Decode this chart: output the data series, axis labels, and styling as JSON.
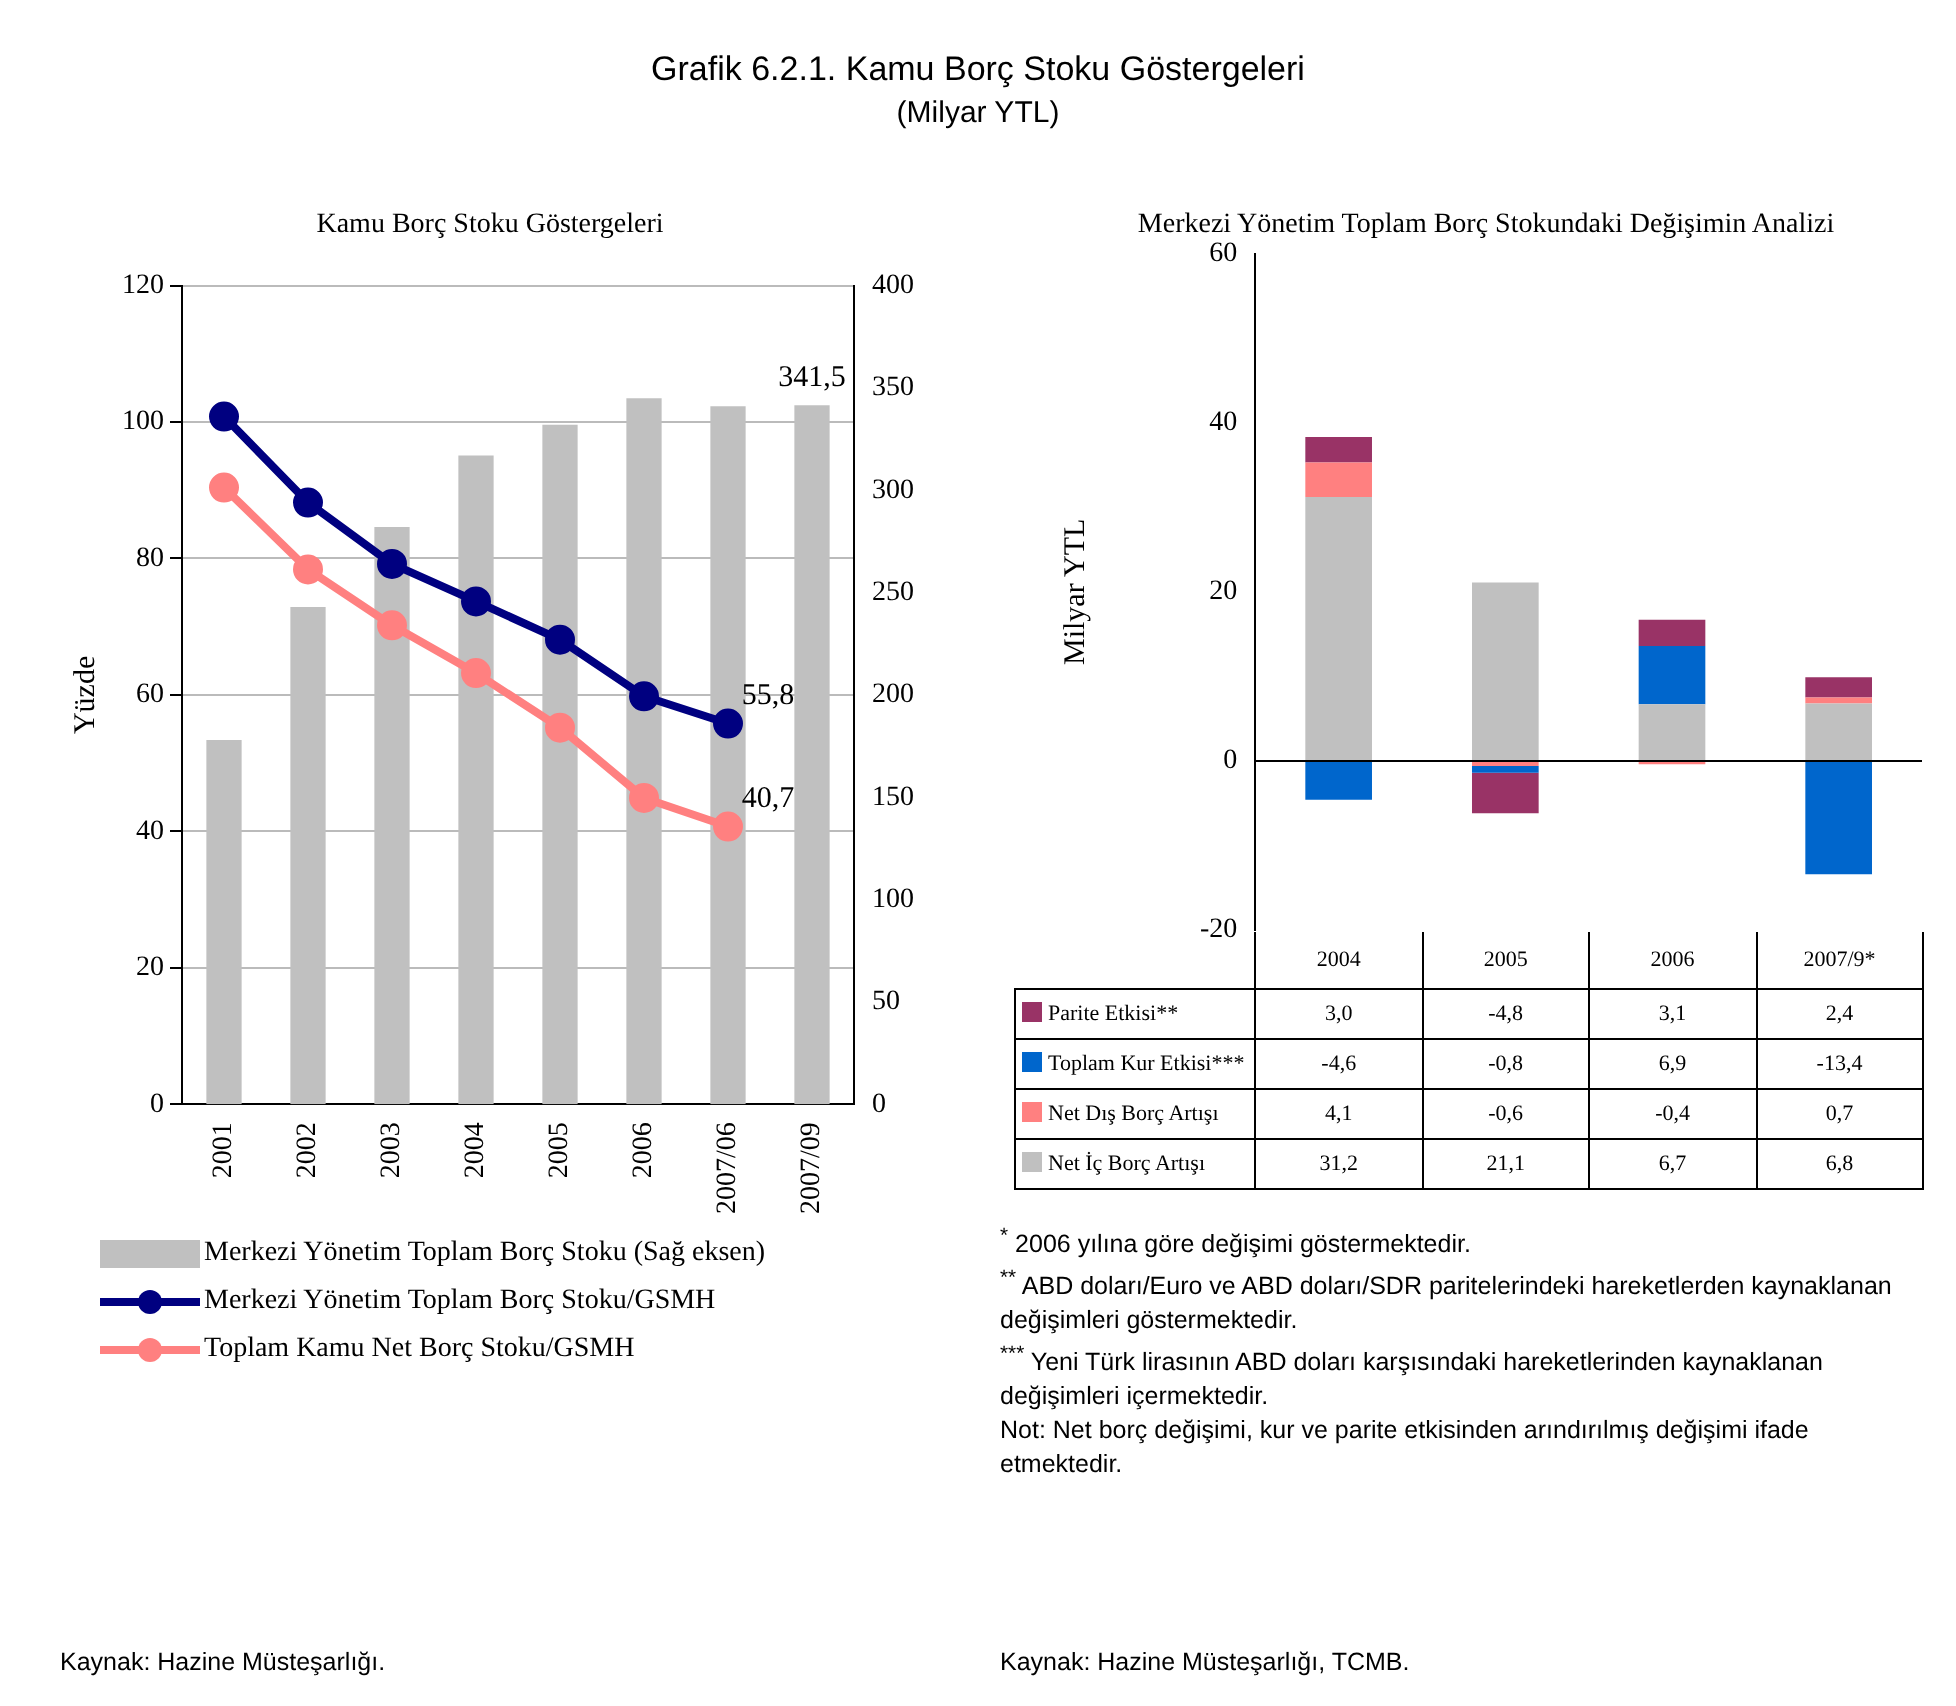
{
  "chart_data": [
    {
      "type": "other",
      "title": "Grafik 6.2.1. Kamu Borç Stoku Göstergeleri",
      "subtitle": "(Milyar YTL)"
    },
    {
      "type": "bar",
      "title": "Kamu Borç Stoku Göstergeleri",
      "ylabel": "Yüzde",
      "categories": [
        "2001",
        "2002",
        "2003",
        "2004",
        "2005",
        "2006",
        "2007/06",
        "2007/09"
      ],
      "series": [
        {
          "type": "bar",
          "name": "Merkezi Yönetim Toplam Borç Stoku (Sağ eksen)",
          "color": "#c0c0c0",
          "axis": "y2",
          "values": [
            178,
            243,
            282,
            317,
            332,
            345,
            341,
            341.5
          ],
          "value_labels": [
            null,
            null,
            null,
            null,
            null,
            null,
            null,
            "341,5"
          ]
        },
        {
          "type": "line",
          "name": "Merkezi Yönetim Toplam Borç Stoku/GSMH",
          "color": "#000080",
          "axis": "y",
          "values": [
            100.8,
            88.2,
            79.2,
            73.7,
            68.1,
            59.8,
            55.8,
            null
          ],
          "value_labels": [
            null,
            null,
            null,
            null,
            null,
            null,
            "55,8",
            null
          ]
        },
        {
          "type": "line",
          "name": "Toplam Kamu Net Borç Stoku/GSMH",
          "color": "#ff8080",
          "axis": "y",
          "values": [
            90.4,
            78.4,
            70.2,
            63.2,
            55.2,
            44.9,
            40.7,
            null
          ],
          "value_labels": [
            null,
            null,
            null,
            null,
            null,
            null,
            "40,7",
            null
          ]
        }
      ],
      "ylim": [
        0,
        120
      ],
      "yticks": [
        0,
        20,
        40,
        60,
        80,
        100,
        120
      ],
      "y2lim": [
        0,
        400
      ],
      "y2ticks": [
        0,
        50,
        100,
        150,
        200,
        250,
        300,
        350,
        400
      ],
      "grid": "y",
      "legend": "bottom",
      "marker": "circle",
      "line_style": "solid",
      "annotations": [
        "Kaynak: Hazine Müsteşarlığı."
      ]
    },
    {
      "type": "bar",
      "title": "Merkezi Yönetim Toplam Borç Stokundaki Değişimin Analizi",
      "ylabel": "Milyar YTL",
      "categories": [
        "2004",
        "2005",
        "2006",
        "2007/9*"
      ],
      "stacked": true,
      "series": [
        {
          "name": "Net İç Borç Artışı",
          "color": "#c0c0c0",
          "values": [
            31.2,
            21.1,
            6.7,
            6.8
          ],
          "value_labels": [
            "31,2",
            "21,1",
            "6,7",
            "6,8"
          ]
        },
        {
          "name": "Net Dış Borç Artışı",
          "color": "#ff8080",
          "values": [
            4.1,
            -0.6,
            -0.4,
            0.7
          ],
          "value_labels": [
            "4,1",
            "-0,6",
            "-0,4",
            "0,7"
          ]
        },
        {
          "name": "Toplam Kur Etkisi***",
          "color": "#0066cc",
          "values": [
            -4.6,
            -0.8,
            6.9,
            -13.4
          ],
          "value_labels": [
            "-4,6",
            "-0,8",
            "6,9",
            "-13,4"
          ]
        },
        {
          "name": "Parite Etkisi**",
          "color": "#993366",
          "values": [
            3.0,
            -4.8,
            3.1,
            2.4
          ],
          "value_labels": [
            "3,0",
            "-4,8",
            "3,1",
            "2,4"
          ]
        }
      ],
      "ylim": [
        -20,
        60
      ],
      "yticks": [
        -20,
        0,
        20,
        40,
        60
      ],
      "legend": "bottom",
      "annotations": [
        "$^{*}$ 2006 yılına göre değişimi göstermektedir.",
        "$^{**}$ ABD doları/Euro ve ABD doları/SDR paritelerindeki hareketlerden kaynaklanan değişimleri göstermektedir.",
        "$^{***}$ Yeni Türk lirasının ABD doları karşısındaki hareketlerinden kaynaklanan değişimleri içermektedir.",
        "Not: Net borç değişimi, kur ve parite etkisinden arındırılmış değişimi ifade etmektedir.",
        "Kaynak: Hazine Müsteşarlığı, TCMB."
      ]
    }
  ]
}
